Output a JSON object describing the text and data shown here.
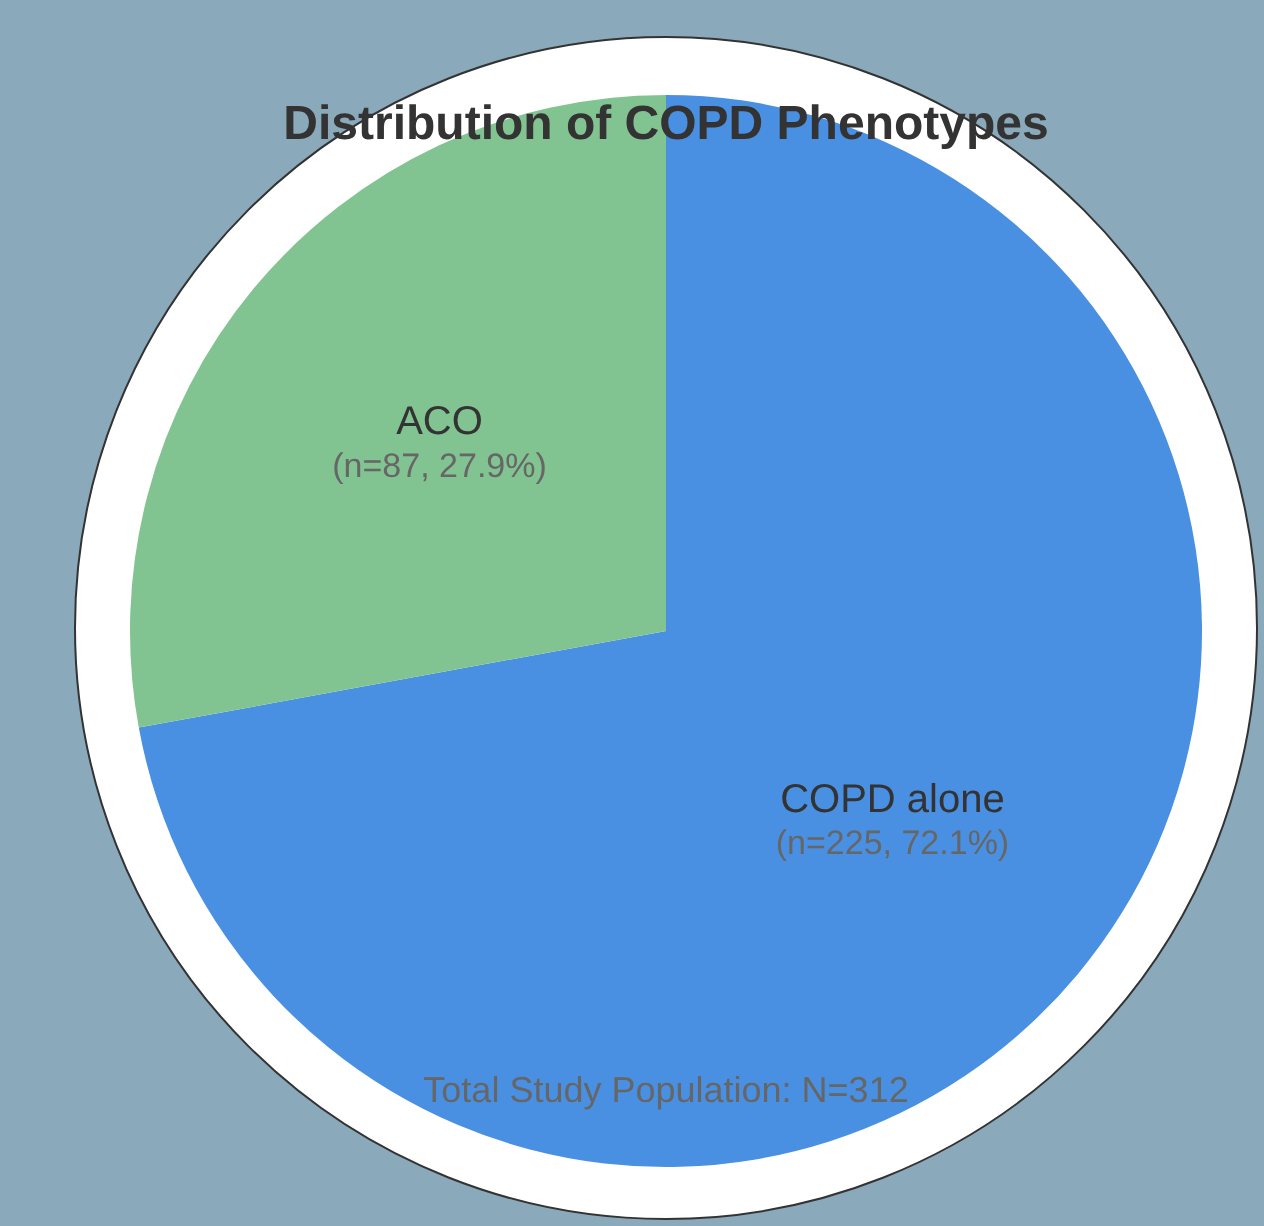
{
  "chart_data": {
    "type": "pie",
    "title": "Distribution of COPD Phenotypes",
    "categories": [
      "COPD alone",
      "ACO"
    ],
    "values": [
      225,
      87
    ],
    "colors": [
      "#4a90e2",
      "#82c491"
    ],
    "value_labels": [
      "(n=225, 72.1%)",
      "(n=87, 27.9%)"
    ],
    "annotations": [
      "Total Study Population: N=312"
    ],
    "legend": false
  }
}
